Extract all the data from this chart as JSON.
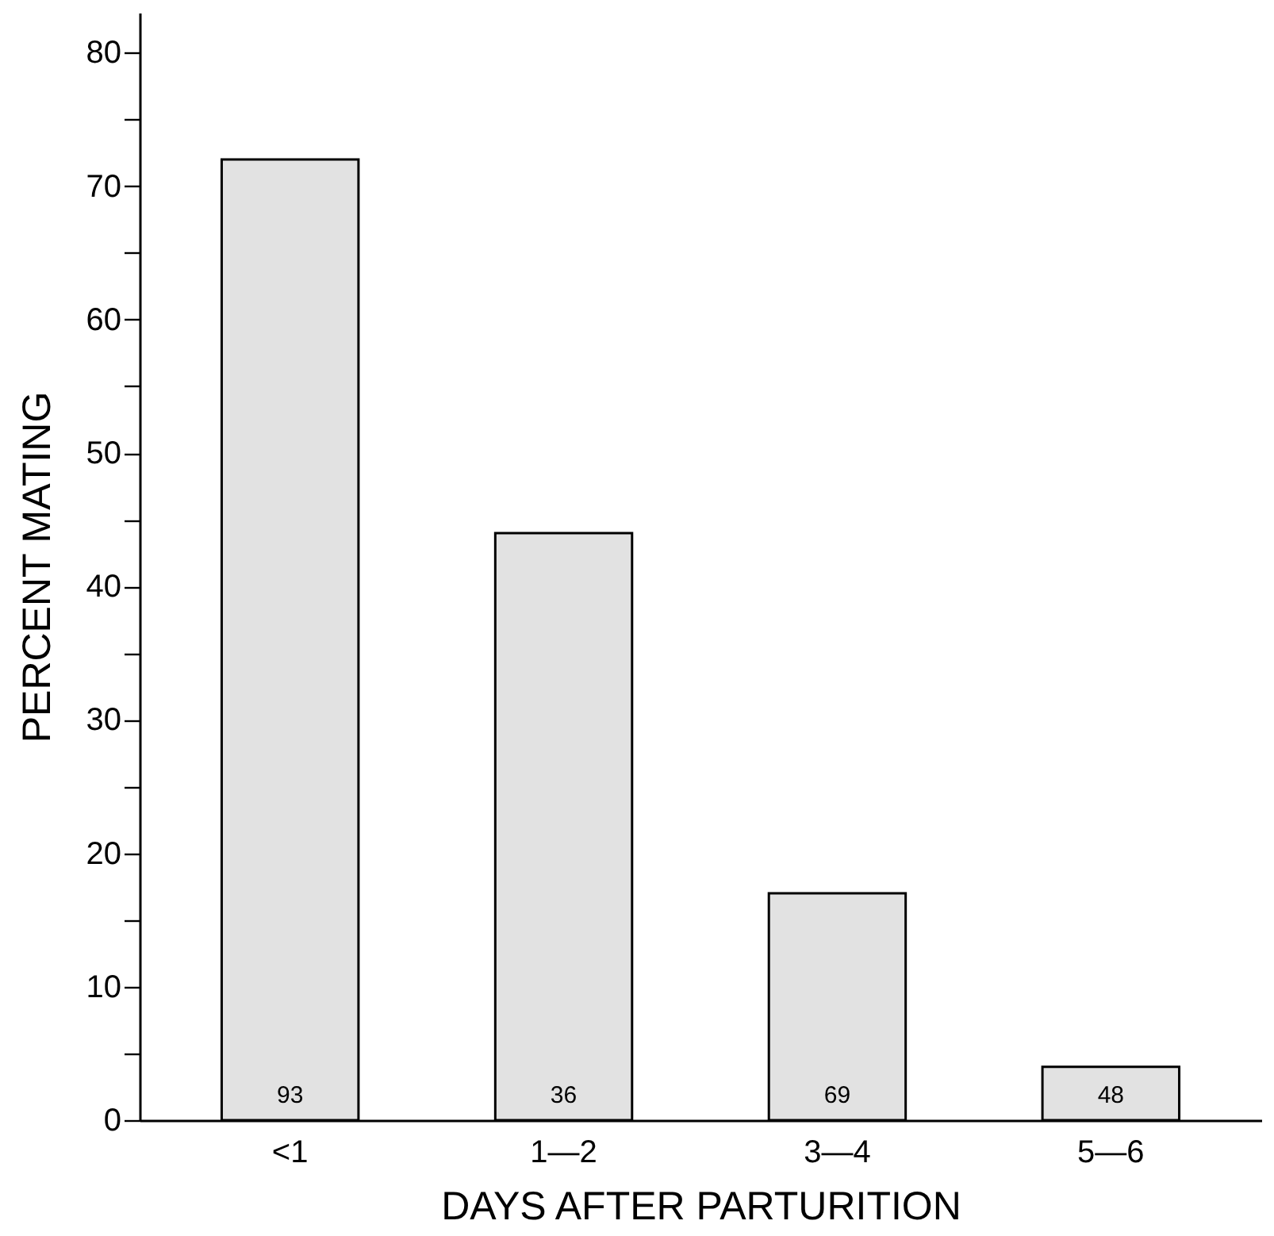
{
  "chart_data": {
    "type": "bar",
    "xlabel": "DAYS  AFTER  PARTURITION",
    "ylabel": "PERCENT   MATING",
    "categories": [
      "<1",
      "1—2",
      "3—4",
      "5—6"
    ],
    "values": [
      72,
      44,
      17,
      4
    ],
    "color": "#e2e2e2",
    "ylim": [
      0,
      83
    ],
    "yticks": [
      0,
      {
        "value": 5,
        "label": null
      },
      10,
      {
        "value": 15,
        "label": null
      },
      20,
      {
        "value": 25,
        "label": null
      },
      30,
      {
        "value": 35,
        "label": null
      },
      40,
      {
        "value": 45,
        "label": null
      },
      50,
      {
        "value": 55,
        "label": null
      },
      60,
      {
        "value": 65,
        "label": null
      },
      70,
      {
        "value": 75,
        "label": null
      },
      80
    ],
    "annotations": [
      "93",
      "36",
      "69",
      "48"
    ],
    "grid": false
  }
}
